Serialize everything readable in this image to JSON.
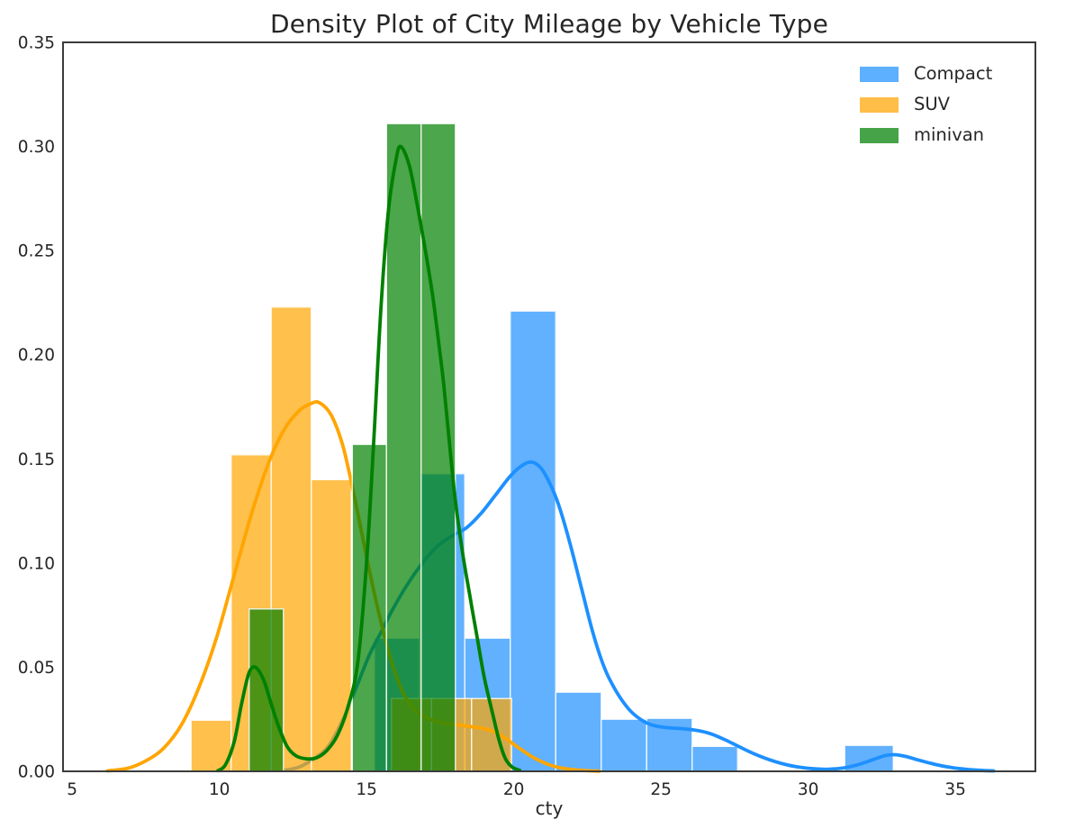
{
  "title": "Density Plot of City Mileage by Vehicle Type",
  "legend": {
    "items": [
      {
        "label": "Compact",
        "color": "#1E90FF"
      },
      {
        "label": "SUV",
        "color": "#FFA500"
      },
      {
        "label": "minivan",
        "color": "#008000"
      }
    ]
  },
  "chart_data": {
    "type": "histogram+kde",
    "title": "Density Plot of City Mileage by Vehicle Type",
    "xlabel": "cty",
    "ylabel": "",
    "xlim": [
      4.69,
      37.72
    ],
    "ylim": [
      0,
      0.35
    ],
    "xticks": [
      5,
      10,
      15,
      20,
      25,
      30,
      35
    ],
    "yticks": [
      0,
      0.05,
      0.1,
      0.15,
      0.2,
      0.25,
      0.3,
      0.35
    ],
    "yticklabels": [
      "0.00",
      "0.05",
      "0.10",
      "0.15",
      "0.20",
      "0.25",
      "0.30",
      "0.35"
    ],
    "grid": false,
    "legend_position": "upper right",
    "bar_alpha": 0.7,
    "kde_linewidth": 3.8,
    "series": [
      {
        "name": "Compact",
        "color": "#1E90FF",
        "bars": [
          [
            15.26,
            16.8,
            0.064
          ],
          [
            16.8,
            18.33,
            0.143
          ],
          [
            18.33,
            19.88,
            0.064
          ],
          [
            19.88,
            21.43,
            0.221
          ],
          [
            21.43,
            22.97,
            0.038
          ],
          [
            22.97,
            24.52,
            0.025
          ],
          [
            24.52,
            26.06,
            0.0255
          ],
          [
            26.06,
            27.61,
            0.012
          ],
          [
            31.24,
            32.89,
            0.0125
          ]
        ],
        "kde": [
          [
            12.2,
            0.0005
          ],
          [
            12.7,
            0.002
          ],
          [
            13.2,
            0.006
          ],
          [
            13.7,
            0.012
          ],
          [
            14.2,
            0.025
          ],
          [
            14.7,
            0.042
          ],
          [
            15.1,
            0.056
          ],
          [
            15.5,
            0.067
          ],
          [
            15.9,
            0.078
          ],
          [
            16.4,
            0.09
          ],
          [
            16.9,
            0.1
          ],
          [
            17.4,
            0.108
          ],
          [
            17.9,
            0.113
          ],
          [
            18.4,
            0.117
          ],
          [
            18.9,
            0.124
          ],
          [
            19.4,
            0.133
          ],
          [
            19.9,
            0.142
          ],
          [
            20.3,
            0.147
          ],
          [
            20.6,
            0.1485
          ],
          [
            20.9,
            0.146
          ],
          [
            21.2,
            0.139
          ],
          [
            21.5,
            0.129
          ],
          [
            21.9,
            0.11
          ],
          [
            22.3,
            0.088
          ],
          [
            22.7,
            0.066
          ],
          [
            23.1,
            0.049
          ],
          [
            23.5,
            0.038
          ],
          [
            23.9,
            0.03
          ],
          [
            24.3,
            0.025
          ],
          [
            24.7,
            0.0222
          ],
          [
            25.2,
            0.021
          ],
          [
            25.7,
            0.0205
          ],
          [
            26.2,
            0.0197
          ],
          [
            26.7,
            0.018
          ],
          [
            27.2,
            0.015
          ],
          [
            27.7,
            0.0115
          ],
          [
            28.2,
            0.0082
          ],
          [
            28.7,
            0.0055
          ],
          [
            29.2,
            0.0034
          ],
          [
            29.7,
            0.002
          ],
          [
            30.2,
            0.0012
          ],
          [
            30.7,
            0.001
          ],
          [
            31.2,
            0.0016
          ],
          [
            31.7,
            0.0032
          ],
          [
            32.2,
            0.0056
          ],
          [
            32.6,
            0.0075
          ],
          [
            32.9,
            0.008
          ],
          [
            33.3,
            0.0072
          ],
          [
            33.7,
            0.0056
          ],
          [
            34.2,
            0.0037
          ],
          [
            34.7,
            0.0022
          ],
          [
            35.2,
            0.0012
          ],
          [
            35.8,
            0.0005
          ],
          [
            36.3,
            0.0002
          ]
        ]
      },
      {
        "name": "SUV",
        "color": "#FFA500",
        "bars": [
          [
            9.04,
            10.4,
            0.0245
          ],
          [
            10.4,
            11.76,
            0.152
          ],
          [
            11.76,
            13.12,
            0.223
          ],
          [
            13.12,
            14.48,
            0.14
          ],
          [
            15.84,
            17.2,
            0.035
          ],
          [
            17.2,
            18.56,
            0.035
          ],
          [
            18.56,
            19.92,
            0.035
          ]
        ],
        "kde": [
          [
            6.2,
            0.0002
          ],
          [
            6.9,
            0.0015
          ],
          [
            7.5,
            0.005
          ],
          [
            8.1,
            0.011
          ],
          [
            8.7,
            0.022
          ],
          [
            9.3,
            0.04
          ],
          [
            9.9,
            0.064
          ],
          [
            10.5,
            0.094
          ],
          [
            11.1,
            0.124
          ],
          [
            11.7,
            0.149
          ],
          [
            12.2,
            0.164
          ],
          [
            12.7,
            0.173
          ],
          [
            13.1,
            0.1765
          ],
          [
            13.4,
            0.177
          ],
          [
            13.8,
            0.171
          ],
          [
            14.2,
            0.156
          ],
          [
            14.6,
            0.131
          ],
          [
            15.0,
            0.103
          ],
          [
            15.4,
            0.077
          ],
          [
            15.8,
            0.055
          ],
          [
            16.2,
            0.039
          ],
          [
            16.6,
            0.03
          ],
          [
            17.0,
            0.026
          ],
          [
            17.5,
            0.0235
          ],
          [
            18.0,
            0.0225
          ],
          [
            18.5,
            0.0215
          ],
          [
            19.0,
            0.0205
          ],
          [
            19.4,
            0.0185
          ],
          [
            19.8,
            0.015
          ],
          [
            20.2,
            0.011
          ],
          [
            20.6,
            0.0072
          ],
          [
            21.0,
            0.0043
          ],
          [
            21.4,
            0.0023
          ],
          [
            21.9,
            0.001
          ],
          [
            22.4,
            0.0004
          ],
          [
            22.9,
            0.0001
          ]
        ]
      },
      {
        "name": "minivan",
        "color": "#008000",
        "bars": [
          [
            11.01,
            12.18,
            0.078
          ],
          [
            14.52,
            15.68,
            0.157
          ],
          [
            15.68,
            16.85,
            0.311
          ],
          [
            16.85,
            18.02,
            0.311
          ]
        ],
        "kde": [
          [
            9.95,
            0.0003
          ],
          [
            10.2,
            0.003
          ],
          [
            10.5,
            0.014
          ],
          [
            10.75,
            0.032
          ],
          [
            11.0,
            0.047
          ],
          [
            11.22,
            0.05
          ],
          [
            11.5,
            0.044
          ],
          [
            11.75,
            0.033
          ],
          [
            12.0,
            0.022
          ],
          [
            12.3,
            0.012
          ],
          [
            12.6,
            0.0075
          ],
          [
            12.95,
            0.006
          ],
          [
            13.3,
            0.0065
          ],
          [
            13.65,
            0.01
          ],
          [
            14.0,
            0.017
          ],
          [
            14.35,
            0.03
          ],
          [
            14.7,
            0.052
          ],
          [
            15.0,
            0.1
          ],
          [
            15.25,
            0.16
          ],
          [
            15.5,
            0.225
          ],
          [
            15.75,
            0.27
          ],
          [
            16.0,
            0.2935
          ],
          [
            16.16,
            0.3
          ],
          [
            16.45,
            0.291
          ],
          [
            16.72,
            0.272
          ],
          [
            17.0,
            0.25
          ],
          [
            17.25,
            0.228
          ],
          [
            17.45,
            0.206
          ],
          [
            17.62,
            0.186
          ],
          [
            17.8,
            0.16
          ],
          [
            18.0,
            0.132
          ],
          [
            18.25,
            0.106
          ],
          [
            18.5,
            0.085
          ],
          [
            18.76,
            0.064
          ],
          [
            19.0,
            0.045
          ],
          [
            19.27,
            0.0285
          ],
          [
            19.5,
            0.015
          ],
          [
            19.72,
            0.006
          ],
          [
            19.95,
            0.002
          ],
          [
            20.2,
            0.0005
          ]
        ]
      }
    ]
  }
}
